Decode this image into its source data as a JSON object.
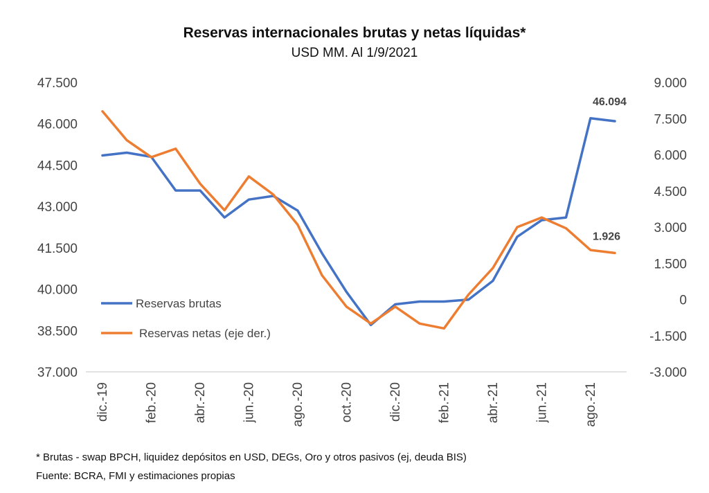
{
  "chart_data": {
    "type": "line",
    "title": "Reservas internacionales brutas y netas líquidas*",
    "subtitle": "USD MM. Al 1/9/2021",
    "x": [
      "dic.-19",
      "ene.-20",
      "feb.-20",
      "mar.-20",
      "abr.-20",
      "may.-20",
      "jun.-20",
      "jul.-20",
      "ago.-20",
      "sep.-20",
      "oct.-20",
      "nov.-20",
      "dic.-20",
      "ene.-21",
      "feb.-21",
      "mar.-21",
      "abr.-21",
      "may.-21",
      "jun.-21",
      "jul.-21",
      "ago.-21",
      "sep.-21"
    ],
    "x_tick_labels": [
      "dic.-19",
      "feb.-20",
      "abr.-20",
      "jun.-20",
      "ago.-20",
      "oct.-20",
      "dic.-20",
      "feb.-21",
      "abr.-21",
      "jun.-21",
      "ago.-21"
    ],
    "y_left": {
      "ylim": [
        37000,
        47500
      ],
      "ticks": [
        37000,
        38500,
        40000,
        41500,
        43000,
        44500,
        46000,
        47500
      ],
      "tick_labels": [
        "37.000",
        "38.500",
        "40.000",
        "41.500",
        "43.000",
        "44.500",
        "46.000",
        "47.500"
      ]
    },
    "y_right": {
      "ylim": [
        -3000,
        9000
      ],
      "ticks": [
        -3000,
        -1500,
        0,
        1500,
        3000,
        4500,
        6000,
        7500,
        9000
      ],
      "tick_labels": [
        "-3.000",
        "-1.500",
        "0",
        "1.500",
        "3.000",
        "4.500",
        "6.000",
        "7.500",
        "9.000"
      ]
    },
    "series": [
      {
        "name": "Reservas brutas",
        "axis": "left",
        "color": "#4472C4",
        "values": [
          44850,
          44950,
          44800,
          43580,
          43580,
          42600,
          43250,
          43380,
          42850,
          41300,
          39900,
          38700,
          39450,
          39550,
          39550,
          39620,
          40300,
          41900,
          42500,
          42600,
          46200,
          46094
        ],
        "end_label": "46.094"
      },
      {
        "name": "Reservas netas (eje der.)",
        "axis": "right",
        "color": "#ED7D31",
        "values": [
          7800,
          6600,
          5900,
          6250,
          4800,
          3700,
          5100,
          4350,
          3100,
          1000,
          -300,
          -1000,
          -300,
          -1000,
          -1200,
          200,
          1300,
          3000,
          3400,
          2950,
          2050,
          1926
        ],
        "end_label": "1.926"
      }
    ],
    "legend": {
      "placement": "lower-left",
      "items": [
        "Reservas brutas",
        "Reservas netas (eje der.)"
      ]
    },
    "grid": false
  },
  "footnote": "* Brutas - swap BPCH, liquidez depósitos en USD, DEGs, Oro y otros pasivos (ej, deuda BIS)",
  "source": "Fuente: BCRA, FMI y estimaciones propias"
}
